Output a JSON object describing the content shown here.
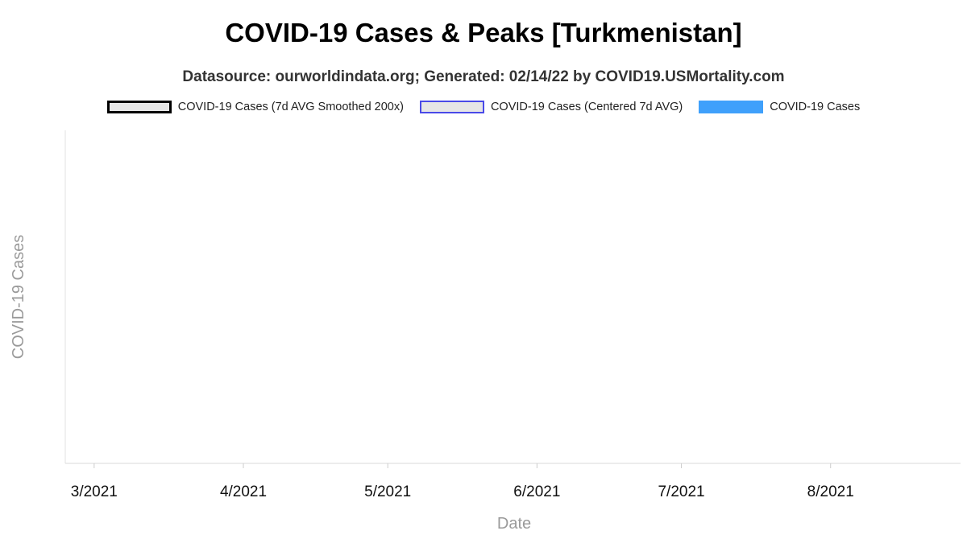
{
  "chart_data": {
    "type": "bar",
    "title": "COVID-19 Cases & Peaks [Turkmenistan]",
    "subtitle": "Datasource: ourworldindata.org; Generated: 02/14/22 by COVID19.USMortality.com",
    "xlabel": "Date",
    "ylabel": "COVID-19 Cases",
    "x_ticks": [
      "3/2021",
      "4/2021",
      "5/2021",
      "6/2021",
      "7/2021",
      "8/2021"
    ],
    "x_tick_dates": [
      "2021-03-01",
      "2021-04-01",
      "2021-05-01",
      "2021-06-01",
      "2021-07-01",
      "2021-08-01"
    ],
    "x_range": [
      "2021-02-23",
      "2021-08-28"
    ],
    "legend_position": "top",
    "grid": false,
    "series": [
      {
        "name": "COVID-19 Cases (7d AVG Smoothed 200x)",
        "type": "line",
        "color": "#000000",
        "fill": "#e6e6e6",
        "values": []
      },
      {
        "name": "COVID-19 Cases (Centered 7d AVG)",
        "type": "line",
        "color": "#4a4ae8",
        "fill": "#e6e6e6",
        "values": []
      },
      {
        "name": "COVID-19 Cases",
        "type": "bar",
        "color": "#3fa0fb",
        "values": []
      }
    ]
  }
}
